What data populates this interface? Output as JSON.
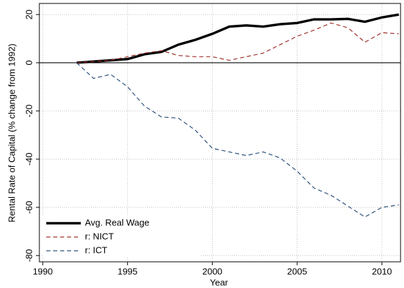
{
  "chart_data": {
    "type": "line",
    "x_label": "Year",
    "y_label": "Rental Rate of Capital (% change from 1992)",
    "x": [
      1992,
      1993,
      1994,
      1995,
      1996,
      1997,
      1998,
      1999,
      2000,
      2001,
      2002,
      2003,
      2004,
      2005,
      2006,
      2007,
      2008,
      2009,
      2010,
      2011
    ],
    "series": [
      {
        "name": "Avg. Real Wage",
        "color": "#000000",
        "dash": "",
        "width": 3.5,
        "values": [
          0,
          0.5,
          1,
          1.5,
          3.5,
          4.5,
          7.5,
          9.5,
          12,
          15,
          15.5,
          15,
          16,
          16.5,
          18,
          18,
          18.2,
          17,
          18.8,
          20
        ]
      },
      {
        "name": "r: NICT",
        "color": "#a0302a",
        "dash": "6 4",
        "width": 1.2,
        "values": [
          0,
          0.5,
          1,
          2.5,
          4,
          5,
          3,
          2.5,
          2.5,
          1,
          2.5,
          4,
          7.5,
          11,
          13.5,
          16.5,
          14.5,
          8.5,
          12.5,
          12
        ]
      },
      {
        "name": "r: ICT",
        "color": "#2a4f7a",
        "dash": "6 4",
        "width": 1.2,
        "values": [
          0,
          -6.5,
          -4.8,
          -10,
          -18,
          -22.5,
          -23,
          -28,
          -35.5,
          -37,
          -38.5,
          -37,
          -39.5,
          -45,
          -52,
          -55,
          -59.5,
          -64,
          -60,
          -59
        ]
      }
    ],
    "xlim": [
      1989.8,
      2011.1
    ],
    "xticks": [
      1990,
      1995,
      2000,
      2005,
      2010
    ],
    "ylim": [
      -82.6,
      24.6
    ],
    "yticks": [
      -80,
      -60,
      -40,
      -20,
      0,
      20
    ],
    "grid": true,
    "legend": "lower-left"
  }
}
